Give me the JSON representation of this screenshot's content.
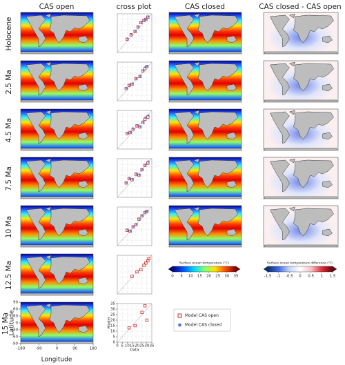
{
  "columns": [
    "CAS open",
    "cross plot",
    "CAS closed",
    "CAS closed - CAS open"
  ],
  "rows": [
    "Holocene",
    "2.5 Ma",
    "4.5 Ma",
    "7.5 Ma",
    "10 Ma",
    "12.5 Ma",
    "15 Ma"
  ],
  "chart_data": [
    {
      "type": "scatter",
      "xlim": [
        0,
        35
      ],
      "ylim": [
        0,
        35
      ],
      "x": [
        10,
        14,
        18,
        21,
        24,
        27,
        29,
        31
      ],
      "series": [
        {
          "name": "Model CAS open",
          "color": "#d62728",
          "values": [
            12,
            16,
            19,
            23,
            27,
            29,
            30,
            32
          ]
        },
        {
          "name": "Model CAS closed",
          "color": "#4a7fd0",
          "values": [
            12,
            16,
            19,
            23,
            27,
            29,
            30,
            32
          ]
        }
      ]
    },
    {
      "type": "scatter",
      "xlim": [
        0,
        35
      ],
      "ylim": [
        0,
        35
      ],
      "x": [
        9,
        12,
        15,
        19,
        23,
        26,
        28,
        30
      ],
      "series": [
        {
          "name": "Model CAS open",
          "color": "#d62728",
          "values": [
            11,
            14,
            15,
            20,
            22,
            27,
            29,
            31
          ]
        },
        {
          "name": "Model CAS closed",
          "color": "#4a7fd0",
          "values": [
            11,
            14,
            15,
            20,
            22,
            27,
            30,
            31
          ]
        }
      ]
    },
    {
      "type": "scatter",
      "xlim": [
        0,
        35
      ],
      "ylim": [
        0,
        35
      ],
      "x": [
        10,
        13,
        16,
        20,
        23,
        26,
        28,
        31
      ],
      "series": [
        {
          "name": "Model CAS open",
          "color": "#d62728",
          "values": [
            14,
            15,
            18,
            21,
            20,
            24,
            27,
            29
          ]
        },
        {
          "name": "Model CAS closed",
          "color": "#4a7fd0",
          "values": [
            14,
            15,
            18,
            21,
            20,
            24,
            28,
            30
          ]
        }
      ]
    },
    {
      "type": "scatter",
      "xlim": [
        0,
        35
      ],
      "ylim": [
        0,
        35
      ],
      "x": [
        9,
        12,
        15,
        19,
        22,
        25,
        28,
        31
      ],
      "series": [
        {
          "name": "Model CAS open",
          "color": "#d62728",
          "values": [
            13,
            17,
            16,
            21,
            20,
            25,
            29,
            31
          ]
        },
        {
          "name": "Model CAS closed",
          "color": "#4a7fd0",
          "values": [
            13,
            17,
            16,
            21,
            20,
            25,
            29,
            32
          ]
        }
      ]
    },
    {
      "type": "scatter",
      "xlim": [
        0,
        35
      ],
      "ylim": [
        0,
        35
      ],
      "x": [
        10,
        13,
        16,
        19,
        22,
        25,
        28,
        30
      ],
      "series": [
        {
          "name": "Model CAS open",
          "color": "#d62728",
          "values": [
            14,
            13,
            17,
            19,
            24,
            27,
            30,
            31
          ]
        },
        {
          "name": "Model CAS closed",
          "color": "#4a7fd0",
          "values": [
            14,
            13,
            17,
            19,
            24,
            27,
            30,
            31
          ]
        }
      ]
    },
    {
      "type": "scatter",
      "xlim": [
        0,
        35
      ],
      "ylim": [
        0,
        35
      ],
      "x": [
        15,
        20,
        24,
        27,
        29,
        31,
        32
      ],
      "series": [
        {
          "name": "Model CAS open",
          "color": "#d62728",
          "values": [
            16,
            20,
            22,
            26,
            28,
            30,
            32
          ]
        }
      ]
    },
    {
      "type": "scatter",
      "xlim": [
        0,
        35
      ],
      "ylim": [
        0,
        35
      ],
      "x": [
        12,
        18,
        25,
        28,
        30
      ],
      "xticks": [
        0,
        5,
        10,
        15,
        20,
        25,
        30,
        35
      ],
      "yticks": [
        0,
        5,
        10,
        15,
        20,
        25,
        30,
        35
      ],
      "xlabel": "Data",
      "ylabel": "Model",
      "series": [
        {
          "name": "Model CAS open",
          "color": "#d62728",
          "values": [
            13,
            15,
            27,
            33,
            20
          ]
        }
      ]
    },
    {
      "type": "colorbar",
      "label": "Surface ocean temperature (°C)",
      "xlim": [
        0,
        35
      ],
      "xticks": [
        0,
        5,
        10,
        15,
        20,
        25,
        30,
        35
      ],
      "colors": [
        "#00007f",
        "#0050ff",
        "#00d4ff",
        "#7dff7a",
        "#ffe600",
        "#ff4d00",
        "#7f0000"
      ]
    },
    {
      "type": "colorbar",
      "label": "Surface ocean temperature difference (°C)",
      "xlim": [
        -1.5,
        1.5
      ],
      "xticks": [
        -1.5,
        -1,
        -0.5,
        0,
        0.5,
        1,
        1.5
      ],
      "colors": [
        "#08306b",
        "#4169e1",
        "#c6d4f5",
        "#ffffff",
        "#f7c4c4",
        "#e0303a",
        "#67000d"
      ]
    },
    {
      "type": "map",
      "xlabel": "Longitude",
      "ylabel": "Latitude",
      "xlim": [
        -180,
        180
      ],
      "ylim": [
        -90,
        90
      ],
      "xticks": [
        -180,
        -90,
        0,
        90,
        180
      ],
      "yticks": [
        -90,
        -60,
        -30,
        0,
        30,
        60,
        90
      ]
    }
  ]
}
